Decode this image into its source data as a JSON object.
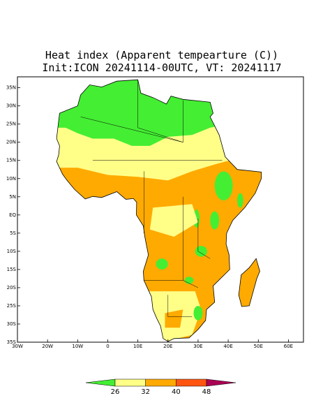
{
  "title": "Heat index (Apparent tempearture (C))",
  "subtitle": "Init:ICON 20241114-00UTC, VT: 20241117",
  "map": {
    "lon_lim": [
      -30,
      65
    ],
    "lat_lim": [
      -35,
      38
    ],
    "lon_ticks": [
      {
        "value": -30,
        "label": "30W"
      },
      {
        "value": -20,
        "label": "20W"
      },
      {
        "value": -10,
        "label": "10W"
      },
      0,
      {
        "value": 10,
        "label": "10E"
      },
      {
        "value": 20,
        "label": "20E"
      },
      {
        "value": 30,
        "label": "30E"
      },
      {
        "value": 40,
        "label": "40E"
      },
      {
        "value": 50,
        "label": "50E"
      },
      {
        "value": 60,
        "label": "60E"
      }
    ],
    "lat_ticks": [
      {
        "value": 35,
        "label": "35N"
      },
      {
        "value": 30,
        "label": "30N"
      },
      {
        "value": 25,
        "label": "25N"
      },
      {
        "value": 20,
        "label": "20N"
      },
      {
        "value": 15,
        "label": "15N"
      },
      {
        "value": 10,
        "label": "10N"
      },
      {
        "value": 5,
        "label": "5N"
      },
      {
        "value": 0,
        "label": "EQ"
      },
      {
        "value": -5,
        "label": "5S"
      },
      {
        "value": -10,
        "label": "10S"
      },
      {
        "value": -15,
        "label": "15S"
      },
      {
        "value": -20,
        "label": "20S"
      },
      {
        "value": -25,
        "label": "25S"
      },
      {
        "value": -30,
        "label": "30S"
      },
      {
        "value": -35,
        "label": "35S"
      }
    ]
  },
  "colorbar": {
    "levels": [
      26,
      32,
      40,
      48
    ],
    "colors": [
      "#44ee33",
      "#ffff88",
      "#ffaa00",
      "#ff5511",
      "#aa0055"
    ]
  }
}
